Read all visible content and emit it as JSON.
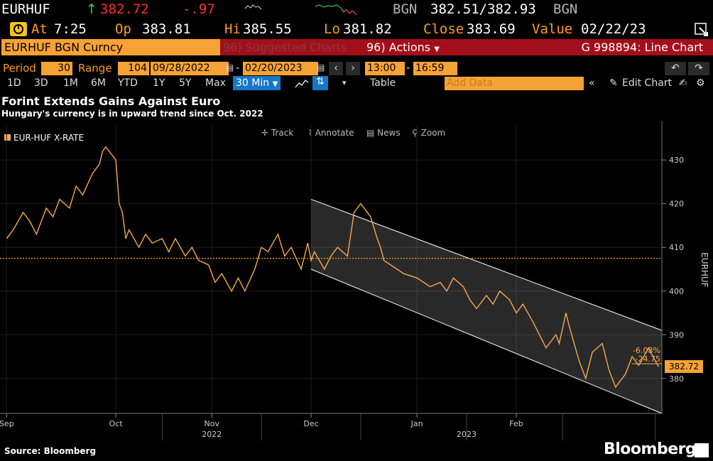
{
  "quote": {
    "ticker": "EURHUF",
    "last": "382.72",
    "change": "-.97",
    "source": "BGN",
    "bid_ask": "382.51/382.93",
    "source2": "BGN",
    "at_label": "At",
    "time": "7:25",
    "op_label": "Op",
    "open": "383.81",
    "hi_label": "Hi",
    "high": "385.55",
    "lo_label": "Lo",
    "low": "381.82",
    "close_label": "Close",
    "close": "383.69",
    "value_label": "Value",
    "date": "02/22/23"
  },
  "toolbar": {
    "security": "EURHUF BGN Curncy",
    "suggested": "96) Suggested Charts",
    "actions": "96) Actions",
    "chart_id": "G 998894: Line Chart",
    "period_label": "Period",
    "period_value": "30",
    "range_label": "Range",
    "range_value": "104",
    "start_date": "09/28/2022",
    "end_date": "02/20/2023",
    "time_start": "13:00",
    "time_end": "16:59",
    "timeframes": [
      "1D",
      "3D",
      "1M",
      "6M",
      "YTD",
      "1Y",
      "5Y",
      "Max"
    ],
    "interval": "30 Min",
    "table_label": "Table",
    "add_data_placeholder": "Add Data",
    "edit_chart": "Edit Chart"
  },
  "chart_tools": [
    "Track",
    "Annotate",
    "News",
    "Zoom"
  ],
  "headline": {
    "title": "Forint Extends Gains Against Euro",
    "subtitle": "Hungary's currency is in upward trend since Oct. 2022"
  },
  "footer": {
    "source": "Source: Bloomberg",
    "brand": "Bloomberg"
  },
  "colors": {
    "series": "#f7a850",
    "accent": "#ff9a1e",
    "down": "#ff2c2c"
  },
  "chart_data": {
    "type": "line",
    "title": "Forint Extends Gains Against Euro",
    "subtitle": "Hungary's currency is in upward trend since Oct. 2022",
    "ylabel": "EURHUF",
    "ylim": [
      372,
      438
    ],
    "yticks": [
      380,
      390,
      400,
      410,
      420,
      430
    ],
    "x_ticks": [
      {
        "label": "Sep",
        "date": "2022-08-31"
      },
      {
        "label": "Oct",
        "date": "2022-10-03"
      },
      {
        "label": "Nov",
        "date": "2022-11-01"
      },
      {
        "label": "Dec",
        "date": "2022-12-01"
      },
      {
        "label": "Jan",
        "date": "2023-01-02"
      },
      {
        "label": "Feb",
        "date": "2023-02-01"
      }
    ],
    "year_labels": [
      "2022",
      "2023"
    ],
    "series": [
      {
        "name": "EUR-HUF X-RATE",
        "color": "#f7a850",
        "points": [
          [
            "2022-08-31",
            412
          ],
          [
            "2022-09-02",
            414
          ],
          [
            "2022-09-05",
            418
          ],
          [
            "2022-09-07",
            416
          ],
          [
            "2022-09-09",
            413
          ],
          [
            "2022-09-12",
            419
          ],
          [
            "2022-09-14",
            417
          ],
          [
            "2022-09-16",
            421
          ],
          [
            "2022-09-19",
            419
          ],
          [
            "2022-09-21",
            424
          ],
          [
            "2022-09-23",
            422
          ],
          [
            "2022-09-26",
            427
          ],
          [
            "2022-09-28",
            429
          ],
          [
            "2022-09-29",
            432
          ],
          [
            "2022-09-30",
            433
          ],
          [
            "2022-10-03",
            430
          ],
          [
            "2022-10-04",
            420
          ],
          [
            "2022-10-05",
            418
          ],
          [
            "2022-10-06",
            412
          ],
          [
            "2022-10-07",
            414
          ],
          [
            "2022-10-10",
            410
          ],
          [
            "2022-10-12",
            413
          ],
          [
            "2022-10-14",
            411
          ],
          [
            "2022-10-17",
            412
          ],
          [
            "2022-10-19",
            409
          ],
          [
            "2022-10-21",
            412
          ],
          [
            "2022-10-24",
            408
          ],
          [
            "2022-10-26",
            410
          ],
          [
            "2022-10-28",
            407
          ],
          [
            "2022-10-31",
            406
          ],
          [
            "2022-11-02",
            402
          ],
          [
            "2022-11-04",
            404
          ],
          [
            "2022-11-07",
            400
          ],
          [
            "2022-11-09",
            403
          ],
          [
            "2022-11-11",
            400
          ],
          [
            "2022-11-14",
            405
          ],
          [
            "2022-11-16",
            410
          ],
          [
            "2022-11-18",
            409
          ],
          [
            "2022-11-21",
            413
          ],
          [
            "2022-11-23",
            408
          ],
          [
            "2022-11-25",
            410
          ],
          [
            "2022-11-28",
            405
          ],
          [
            "2022-11-30",
            411
          ],
          [
            "2022-12-01",
            407
          ],
          [
            "2022-12-02",
            409
          ],
          [
            "2022-12-05",
            405
          ],
          [
            "2022-12-07",
            408
          ],
          [
            "2022-12-09",
            410
          ],
          [
            "2022-12-12",
            408
          ],
          [
            "2022-12-14",
            418
          ],
          [
            "2022-12-16",
            420
          ],
          [
            "2022-12-19",
            417
          ],
          [
            "2022-12-21",
            412
          ],
          [
            "2022-12-22",
            410
          ],
          [
            "2022-12-23",
            407
          ],
          [
            "2022-12-27",
            405
          ],
          [
            "2022-12-29",
            404
          ],
          [
            "2023-01-02",
            403
          ],
          [
            "2023-01-04",
            402
          ],
          [
            "2023-01-06",
            401
          ],
          [
            "2023-01-09",
            402
          ],
          [
            "2023-01-11",
            400
          ],
          [
            "2023-01-13",
            403
          ],
          [
            "2023-01-16",
            401
          ],
          [
            "2023-01-18",
            398
          ],
          [
            "2023-01-20",
            396
          ],
          [
            "2023-01-23",
            399
          ],
          [
            "2023-01-25",
            397
          ],
          [
            "2023-01-27",
            400
          ],
          [
            "2023-01-30",
            398
          ],
          [
            "2023-02-01",
            395
          ],
          [
            "2023-02-03",
            397
          ],
          [
            "2023-02-06",
            393
          ],
          [
            "2023-02-08",
            390
          ],
          [
            "2023-02-10",
            387
          ],
          [
            "2023-02-13",
            390
          ],
          [
            "2023-02-14",
            388
          ],
          [
            "2023-02-16",
            395
          ],
          [
            "2023-02-17",
            392
          ],
          [
            "2023-02-20",
            384
          ],
          [
            "2023-02-22",
            380
          ],
          [
            "2023-02-24",
            386
          ],
          [
            "2023-02-27",
            388
          ],
          [
            "2023-03-01",
            382
          ],
          [
            "2023-03-03",
            378
          ],
          [
            "2023-03-06",
            381
          ],
          [
            "2023-03-08",
            385
          ],
          [
            "2023-03-10",
            383
          ],
          [
            "2023-03-13",
            387
          ],
          [
            "2023-03-15",
            384
          ],
          [
            "2023-03-16",
            382.72
          ]
        ]
      }
    ],
    "reference_line": {
      "value": 407.5,
      "style": "dotted"
    },
    "channel": {
      "upper": [
        [
          "2022-12-01",
          421
        ],
        [
          "2023-03-17",
          391
        ]
      ],
      "lower": [
        [
          "2022-12-01",
          405
        ],
        [
          "2023-03-17",
          372
        ]
      ]
    },
    "annotations": [
      "-6.08%",
      "-24.75"
    ],
    "last_value_label": "382.72",
    "legend_position": "top-left",
    "grid": true
  }
}
